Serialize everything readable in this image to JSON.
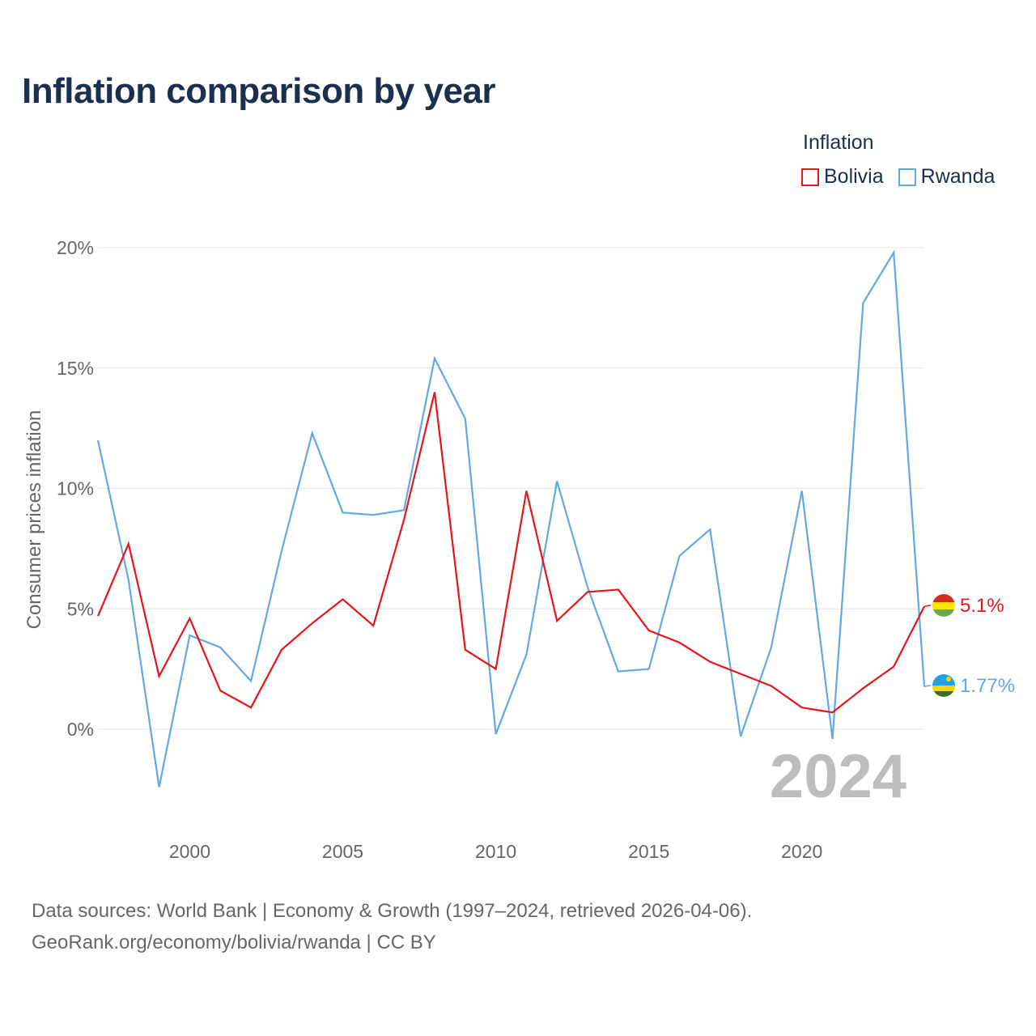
{
  "title": "Inflation comparison by year",
  "legend": {
    "title": "Inflation",
    "items": [
      {
        "label": "Bolivia",
        "color": "#e8141b"
      },
      {
        "label": "Rwanda",
        "color": "#63a8e6"
      }
    ]
  },
  "footer": {
    "line1": "Data sources: World Bank | Economy & Growth (1997–2024, retrieved 2026-04-06).",
    "line2": "GeoRank.org/economy/bolivia/rwanda | CC BY"
  },
  "chart_data": {
    "type": "line",
    "ylabel": "Consumer prices inflation",
    "xlim": [
      1997,
      2024
    ],
    "ylim": [
      -4,
      20
    ],
    "x_ticks": [
      2000,
      2005,
      2010,
      2015,
      2020
    ],
    "y_ticks": [
      0,
      5,
      10,
      15,
      20
    ],
    "y_tick_labels": [
      "0%",
      "5%",
      "10%",
      "15%",
      "20%"
    ],
    "year_label": "2024",
    "x": [
      1997,
      1998,
      1999,
      2000,
      2001,
      2002,
      2003,
      2004,
      2005,
      2006,
      2007,
      2008,
      2009,
      2010,
      2011,
      2012,
      2013,
      2014,
      2015,
      2016,
      2017,
      2018,
      2019,
      2020,
      2021,
      2022,
      2023,
      2024
    ],
    "series": [
      {
        "name": "Bolivia",
        "color": "#e8141b",
        "end_label": "5.1%",
        "values": [
          4.7,
          7.7,
          2.2,
          4.6,
          1.6,
          0.9,
          3.3,
          4.4,
          5.4,
          4.3,
          8.7,
          14.0,
          3.3,
          2.5,
          9.9,
          4.5,
          5.7,
          5.8,
          4.1,
          3.6,
          2.8,
          2.3,
          1.8,
          0.9,
          0.7,
          1.7,
          2.6,
          5.1
        ]
      },
      {
        "name": "Rwanda",
        "color": "#63a8e6",
        "end_label": "1.77%",
        "values": [
          12.0,
          6.2,
          -2.4,
          3.9,
          3.4,
          2.0,
          7.4,
          12.3,
          9.0,
          8.9,
          9.1,
          15.4,
          12.9,
          -0.2,
          3.1,
          10.3,
          5.9,
          2.4,
          2.5,
          7.2,
          8.3,
          -0.3,
          3.4,
          9.9,
          -0.4,
          17.7,
          19.8,
          1.77
        ]
      }
    ]
  }
}
